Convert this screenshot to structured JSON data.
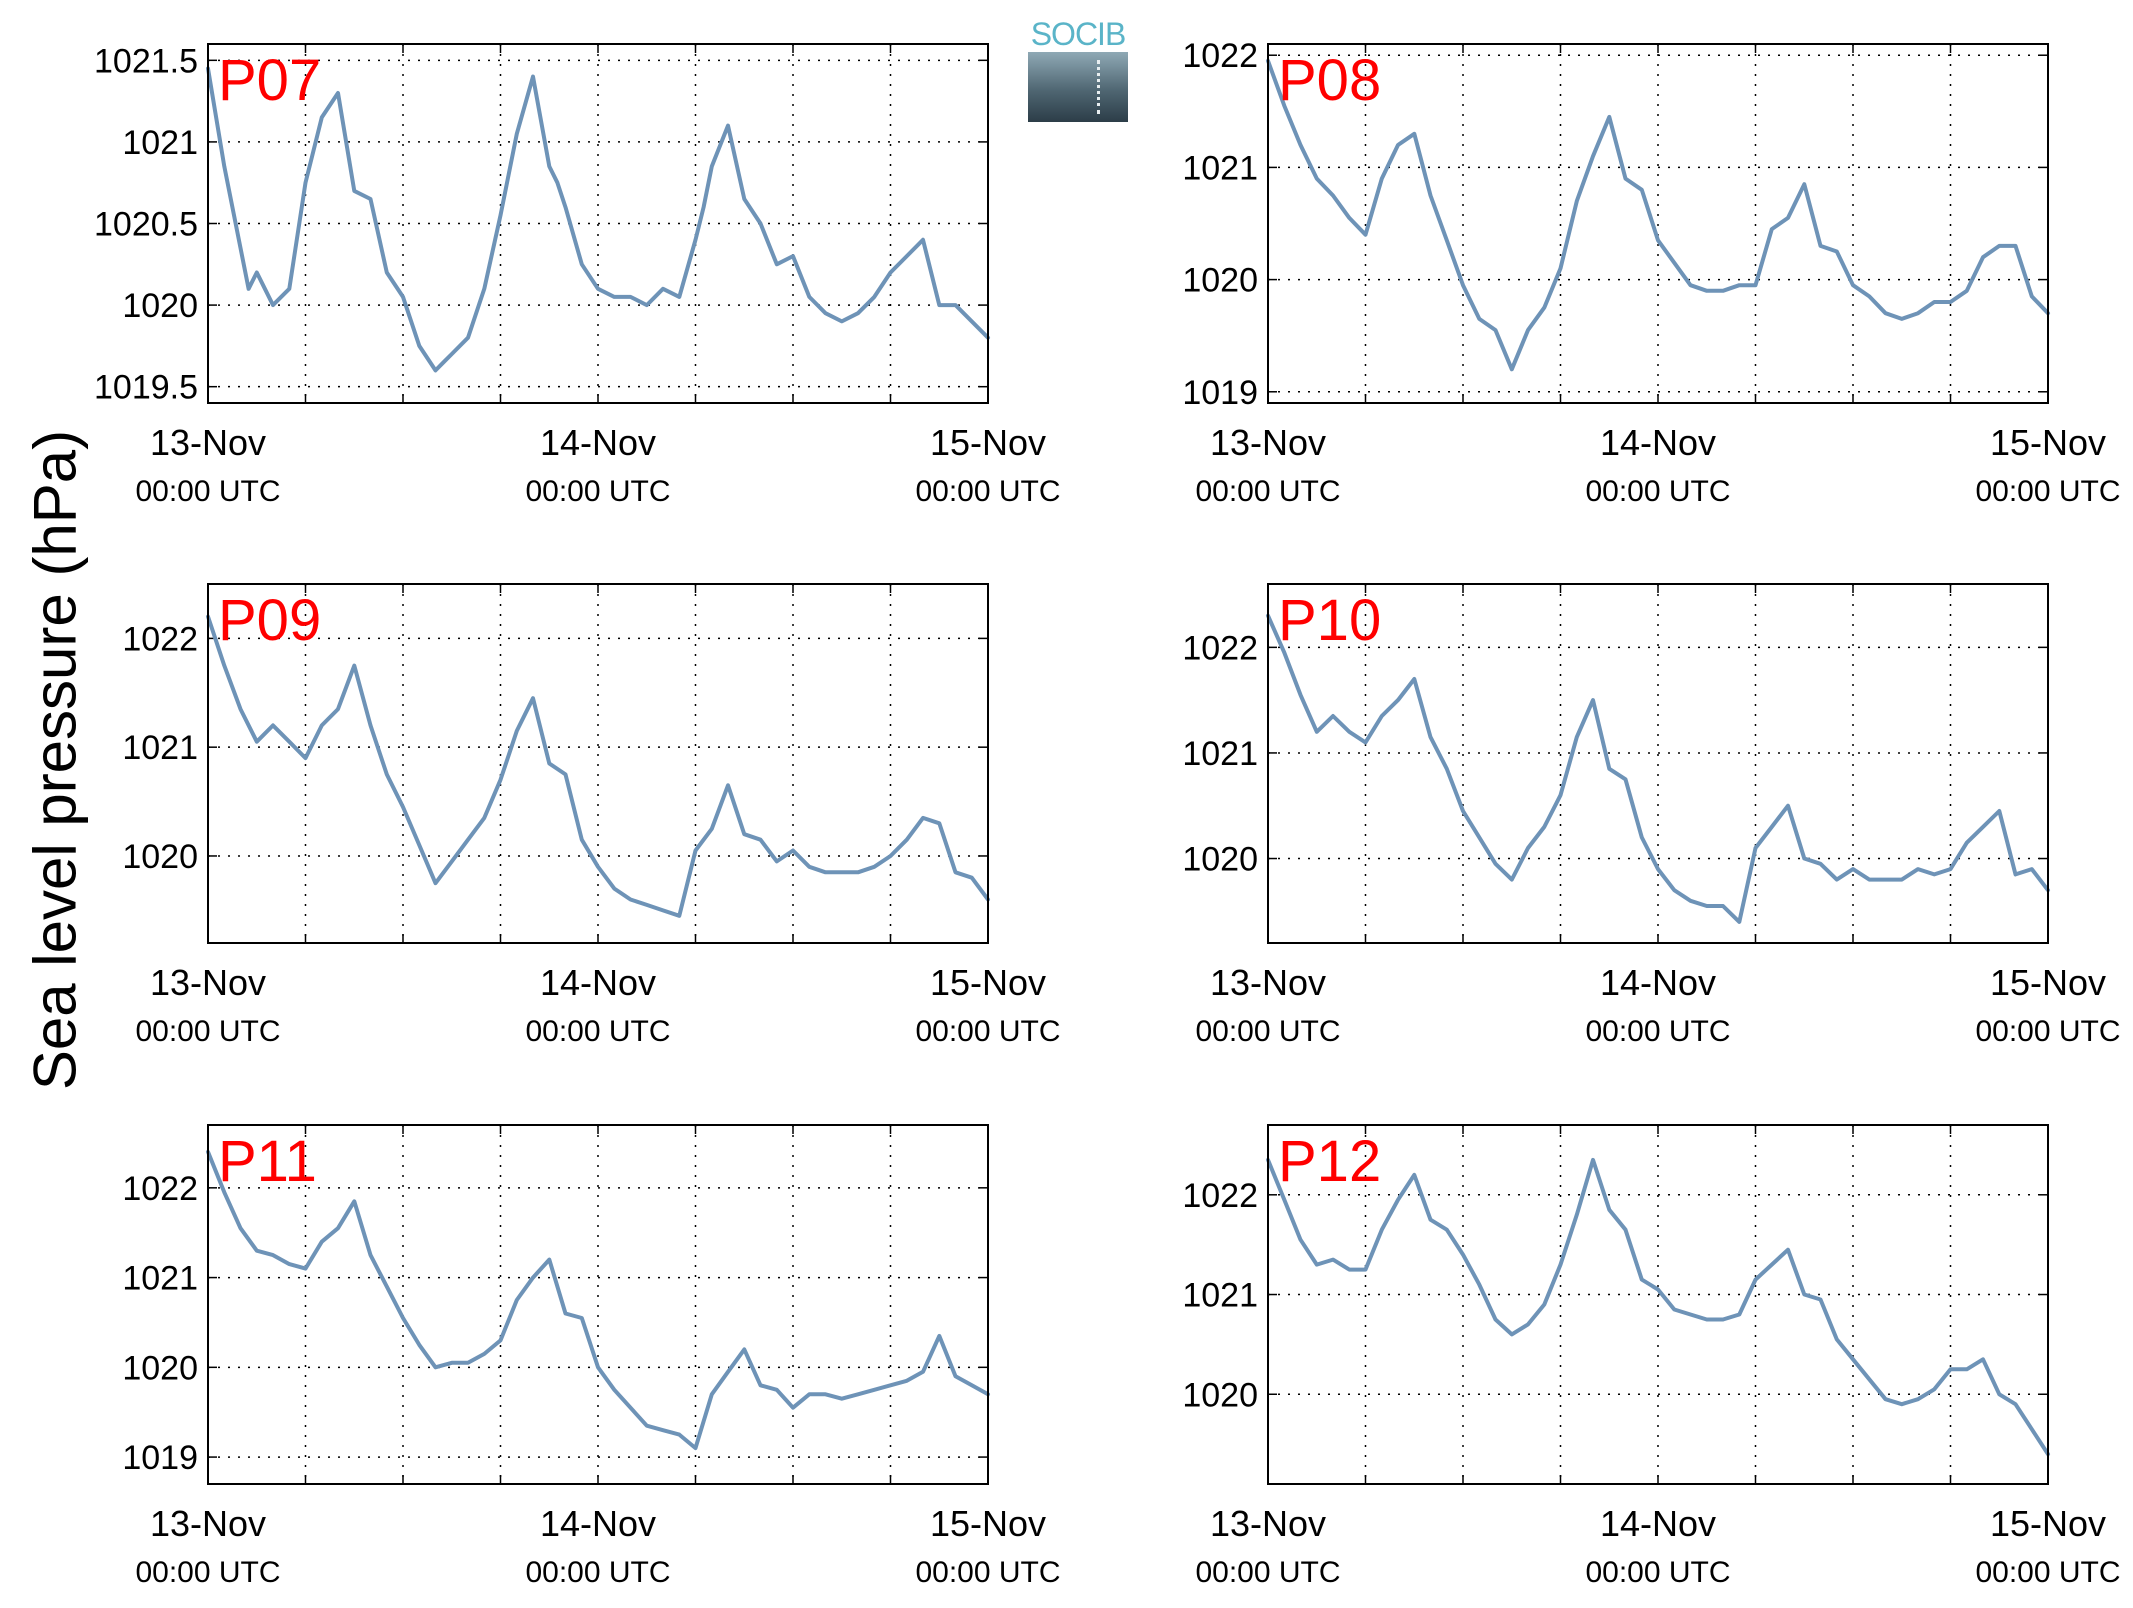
{
  "y_axis_label": "Sea level pressure (hPa)",
  "logo": {
    "text": "SOCIB"
  },
  "line_color": "#6e93b7",
  "label_color": "#ff0000",
  "x_ticks": [
    {
      "value": 0,
      "date": "13-Nov",
      "time": "00:00 UTC"
    },
    {
      "value": 24,
      "date": "14-Nov",
      "time": "00:00 UTC"
    },
    {
      "value": 48,
      "date": "15-Nov",
      "time": "00:00 UTC"
    }
  ],
  "chart_data": [
    {
      "type": "line",
      "label": "P07",
      "xlim": [
        0,
        48
      ],
      "ylim": [
        1019.4,
        1021.6
      ],
      "yticks": [
        1019.5,
        1020,
        1020.5,
        1021,
        1021.5
      ],
      "ytick_labels": [
        "1019.5",
        "1020",
        "1020.5",
        "1021",
        "1021.5"
      ],
      "grid": true,
      "x": [
        0,
        1,
        2,
        2.5,
        3,
        3.5,
        4,
        5,
        6,
        7,
        8,
        9,
        10,
        11,
        12,
        13,
        14,
        14.5,
        15,
        16,
        17,
        18,
        19,
        20,
        21,
        21.5,
        22,
        23,
        24,
        25,
        26,
        27,
        28,
        29,
        30,
        30.5,
        31,
        32,
        33,
        34,
        35,
        36,
        37,
        38,
        39,
        40,
        41,
        42,
        43,
        44,
        45,
        46,
        47,
        48
      ],
      "values": [
        1021.45,
        1020.85,
        1020.35,
        1020.1,
        1020.2,
        1020.1,
        1020,
        1020.1,
        1020.75,
        1021.15,
        1021.3,
        1020.7,
        1020.65,
        1020.2,
        1020.05,
        1019.75,
        1019.6,
        1019.65,
        1019.7,
        1019.8,
        1020.1,
        1020.55,
        1021.05,
        1021.4,
        1020.85,
        1020.75,
        1020.6,
        1020.25,
        1020.1,
        1020.05,
        1020.05,
        1020.0,
        1020.1,
        1020.05,
        1020.4,
        1020.6,
        1020.85,
        1021.1,
        1020.65,
        1020.5,
        1020.25,
        1020.3,
        1020.05,
        1019.95,
        1019.9,
        1019.95,
        1020.05,
        1020.2,
        1020.3,
        1020.4,
        1020.0,
        1020.0,
        1019.9,
        1019.8
      ]
    },
    {
      "type": "line",
      "label": "P08",
      "xlim": [
        0,
        48
      ],
      "ylim": [
        1018.9,
        1022.1
      ],
      "yticks": [
        1019,
        1020,
        1021,
        1022
      ],
      "ytick_labels": [
        "1019",
        "1020",
        "1021",
        "1022"
      ],
      "grid": true,
      "x": [
        0,
        1,
        2,
        3,
        4,
        5,
        6,
        7,
        8,
        9,
        10,
        11,
        12,
        13,
        14,
        15,
        16,
        17,
        18,
        19,
        20,
        21,
        22,
        23,
        24,
        25,
        26,
        27,
        28,
        29,
        30,
        31,
        32,
        33,
        34,
        35,
        36,
        37,
        38,
        39,
        40,
        41,
        42,
        43,
        44,
        45,
        46,
        47,
        48
      ],
      "values": [
        1021.95,
        1021.55,
        1021.2,
        1020.9,
        1020.75,
        1020.55,
        1020.4,
        1020.9,
        1021.2,
        1021.3,
        1020.75,
        1020.35,
        1019.95,
        1019.65,
        1019.55,
        1019.2,
        1019.55,
        1019.75,
        1020.1,
        1020.7,
        1021.1,
        1021.45,
        1020.9,
        1020.8,
        1020.35,
        1020.15,
        1019.95,
        1019.9,
        1019.9,
        1019.95,
        1019.95,
        1020.45,
        1020.55,
        1020.85,
        1020.3,
        1020.25,
        1019.95,
        1019.85,
        1019.7,
        1019.65,
        1019.7,
        1019.8,
        1019.8,
        1019.9,
        1020.2,
        1020.3,
        1020.3,
        1019.85,
        1019.7
      ]
    },
    {
      "type": "line",
      "label": "P09",
      "xlim": [
        0,
        48
      ],
      "ylim": [
        1019.2,
        1022.5
      ],
      "yticks": [
        1020,
        1021,
        1022
      ],
      "ytick_labels": [
        "1020",
        "1021",
        "1022"
      ],
      "grid": true,
      "x": [
        0,
        1,
        2,
        3,
        4,
        5,
        6,
        7,
        8,
        9,
        10,
        11,
        12,
        13,
        14,
        15,
        16,
        17,
        18,
        19,
        20,
        21,
        22,
        23,
        24,
        25,
        26,
        27,
        28,
        29,
        30,
        31,
        32,
        33,
        34,
        35,
        36,
        37,
        38,
        39,
        40,
        41,
        42,
        43,
        44,
        45,
        46,
        47,
        48
      ],
      "values": [
        1022.2,
        1021.75,
        1021.35,
        1021.05,
        1021.2,
        1021.05,
        1020.9,
        1021.2,
        1021.35,
        1021.75,
        1021.2,
        1020.75,
        1020.45,
        1020.1,
        1019.75,
        1019.95,
        1020.15,
        1020.35,
        1020.7,
        1021.15,
        1021.45,
        1020.85,
        1020.75,
        1020.15,
        1019.9,
        1019.7,
        1019.6,
        1019.55,
        1019.5,
        1019.45,
        1020.05,
        1020.25,
        1020.65,
        1020.2,
        1020.15,
        1019.95,
        1020.05,
        1019.9,
        1019.85,
        1019.85,
        1019.85,
        1019.9,
        1020.0,
        1020.15,
        1020.35,
        1020.3,
        1019.85,
        1019.8,
        1019.6
      ]
    },
    {
      "type": "line",
      "label": "P10",
      "xlim": [
        0,
        48
      ],
      "ylim": [
        1019.2,
        1022.6
      ],
      "yticks": [
        1020,
        1021,
        1022
      ],
      "ytick_labels": [
        "1020",
        "1021",
        "1022"
      ],
      "grid": true,
      "x": [
        0,
        1,
        2,
        3,
        4,
        5,
        6,
        7,
        8,
        9,
        10,
        11,
        12,
        13,
        14,
        15,
        16,
        17,
        18,
        19,
        20,
        21,
        22,
        23,
        24,
        25,
        26,
        27,
        28,
        29,
        30,
        31,
        32,
        33,
        34,
        35,
        36,
        37,
        38,
        39,
        40,
        41,
        42,
        43,
        44,
        45,
        46,
        47,
        48
      ],
      "values": [
        1022.3,
        1021.95,
        1021.55,
        1021.2,
        1021.35,
        1021.2,
        1021.1,
        1021.35,
        1021.5,
        1021.7,
        1021.15,
        1020.85,
        1020.45,
        1020.2,
        1019.95,
        1019.8,
        1020.1,
        1020.3,
        1020.6,
        1021.15,
        1021.5,
        1020.85,
        1020.75,
        1020.2,
        1019.9,
        1019.7,
        1019.6,
        1019.55,
        1019.55,
        1019.4,
        1020.1,
        1020.3,
        1020.5,
        1020.0,
        1019.95,
        1019.8,
        1019.9,
        1019.8,
        1019.8,
        1019.8,
        1019.9,
        1019.85,
        1019.9,
        1020.15,
        1020.3,
        1020.45,
        1019.85,
        1019.9,
        1019.7
      ]
    },
    {
      "type": "line",
      "label": "P11",
      "xlim": [
        0,
        48
      ],
      "ylim": [
        1018.7,
        1022.7
      ],
      "yticks": [
        1019,
        1020,
        1021,
        1022
      ],
      "ytick_labels": [
        "1019",
        "1020",
        "1021",
        "1022"
      ],
      "grid": true,
      "x": [
        0,
        1,
        2,
        3,
        4,
        5,
        6,
        7,
        8,
        9,
        10,
        11,
        12,
        13,
        14,
        15,
        16,
        17,
        18,
        19,
        20,
        21,
        22,
        23,
        24,
        25,
        26,
        27,
        28,
        29,
        30,
        31,
        32,
        33,
        34,
        35,
        36,
        37,
        38,
        39,
        40,
        41,
        42,
        43,
        44,
        45,
        46,
        47,
        48
      ],
      "values": [
        1022.4,
        1021.95,
        1021.55,
        1021.3,
        1021.25,
        1021.15,
        1021.1,
        1021.4,
        1021.55,
        1021.85,
        1021.25,
        1020.9,
        1020.55,
        1020.25,
        1020.0,
        1020.05,
        1020.05,
        1020.15,
        1020.3,
        1020.75,
        1021.0,
        1021.2,
        1020.6,
        1020.55,
        1020.0,
        1019.75,
        1019.55,
        1019.35,
        1019.3,
        1019.25,
        1019.1,
        1019.7,
        1019.95,
        1020.2,
        1019.8,
        1019.75,
        1019.55,
        1019.7,
        1019.7,
        1019.65,
        1019.7,
        1019.75,
        1019.8,
        1019.85,
        1019.95,
        1020.35,
        1019.9,
        1019.8,
        1019.7
      ]
    },
    {
      "type": "line",
      "label": "P12",
      "xlim": [
        0,
        48
      ],
      "ylim": [
        1019.1,
        1022.7
      ],
      "yticks": [
        1020,
        1021,
        1022
      ],
      "ytick_labels": [
        "1020",
        "1021",
        "1022"
      ],
      "grid": true,
      "x": [
        0,
        1,
        2,
        3,
        4,
        5,
        6,
        7,
        8,
        9,
        10,
        11,
        12,
        13,
        14,
        15,
        16,
        17,
        18,
        19,
        20,
        21,
        22,
        23,
        24,
        25,
        26,
        27,
        28,
        29,
        30,
        31,
        32,
        33,
        34,
        35,
        36,
        37,
        38,
        39,
        40,
        41,
        42,
        43,
        44,
        45,
        46,
        47,
        48
      ],
      "values": [
        1022.35,
        1021.95,
        1021.55,
        1021.3,
        1021.35,
        1021.25,
        1021.25,
        1021.65,
        1021.95,
        1022.2,
        1021.75,
        1021.65,
        1021.4,
        1021.1,
        1020.75,
        1020.6,
        1020.7,
        1020.9,
        1021.3,
        1021.8,
        1022.35,
        1021.85,
        1021.65,
        1021.15,
        1021.05,
        1020.85,
        1020.8,
        1020.75,
        1020.75,
        1020.8,
        1021.15,
        1021.3,
        1021.45,
        1021.0,
        1020.95,
        1020.55,
        1020.35,
        1020.15,
        1019.95,
        1019.9,
        1019.95,
        1020.05,
        1020.25,
        1020.25,
        1020.35,
        1020.0,
        1019.9,
        1019.65,
        1019.4
      ]
    }
  ]
}
